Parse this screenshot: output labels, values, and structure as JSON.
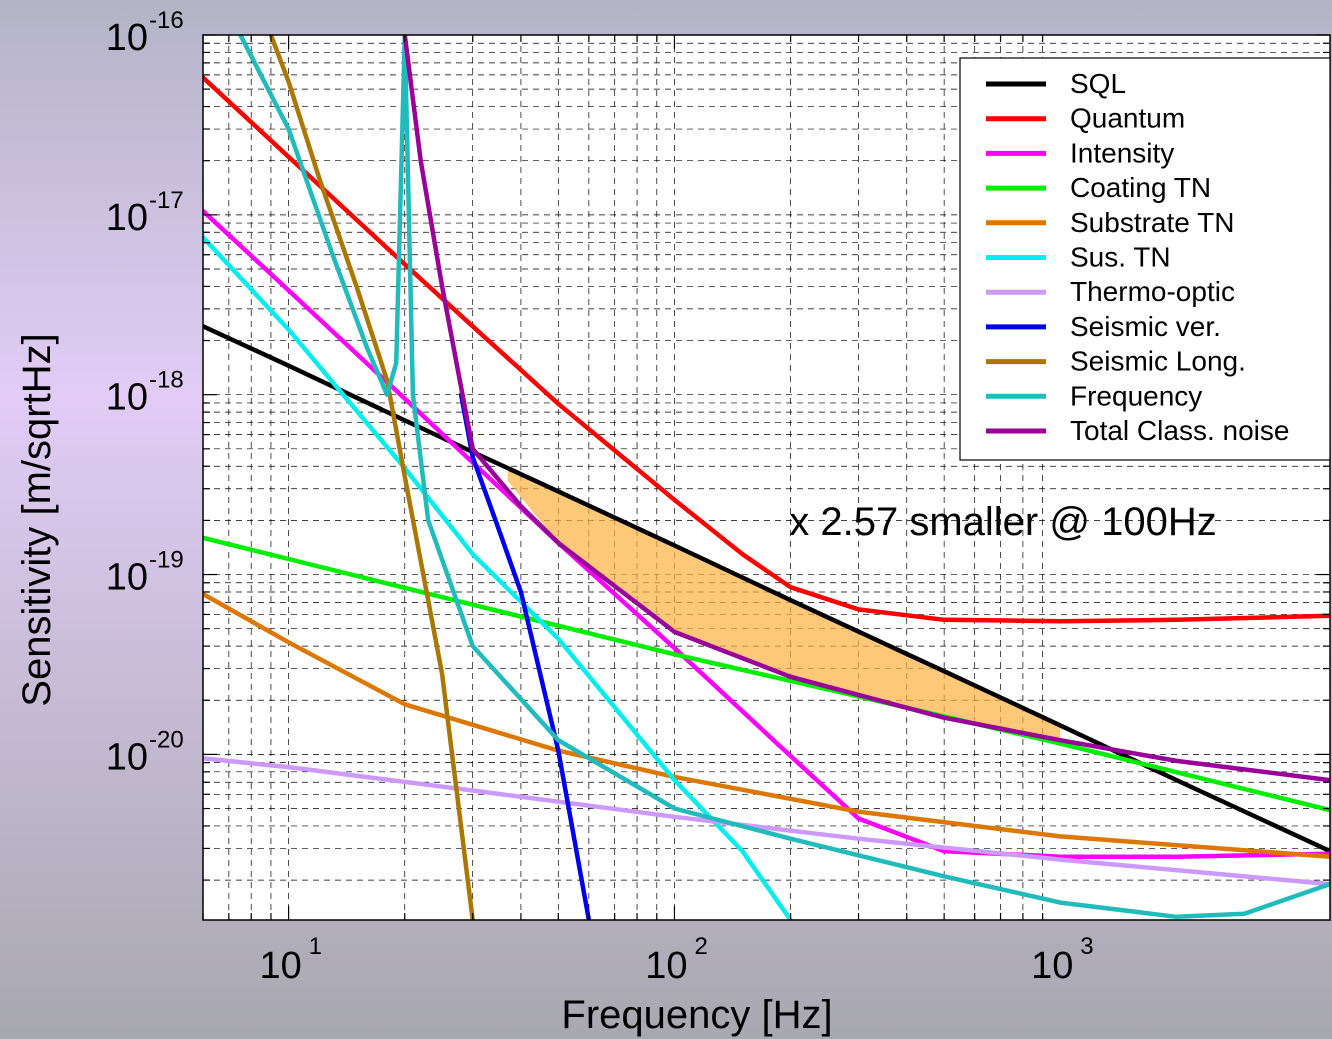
{
  "chart_data": {
    "type": "line",
    "xlabel": "Frequency [Hz]",
    "ylabel": "Sensitivity [m/sqrtHz]",
    "x_scale": "log",
    "y_scale": "log",
    "xlim": [
      6,
      5000
    ],
    "ylim": [
      1.2e-21,
      1e-16
    ],
    "grid": true,
    "legend_position": "top-right",
    "annotation": "x 2.57 smaller @ 100Hz",
    "x_ticks": [
      {
        "base": "10",
        "exp": "1",
        "value": 10
      },
      {
        "base": "10",
        "exp": "2",
        "value": 100
      },
      {
        "base": "10",
        "exp": "3",
        "value": 1000
      }
    ],
    "y_ticks": [
      {
        "base": "10",
        "exp": "-16",
        "value": 1e-16
      },
      {
        "base": "10",
        "exp": "-17",
        "value": 1e-17
      },
      {
        "base": "10",
        "exp": "-18",
        "value": 1e-18
      },
      {
        "base": "10",
        "exp": "-19",
        "value": 1e-19
      },
      {
        "base": "10",
        "exp": "-20",
        "value": 1e-20
      }
    ],
    "series": [
      {
        "name": "SQL",
        "color": "#000000",
        "x": [
          6,
          10,
          20,
          30,
          50,
          100,
          200,
          500,
          1000,
          2000,
          5000
        ],
        "y": [
          2.4e-18,
          1.45e-18,
          7.2e-19,
          4.8e-19,
          2.9e-19,
          1.45e-19,
          7.2e-20,
          2.9e-20,
          1.45e-20,
          7.2e-21,
          2.9e-21
        ]
      },
      {
        "name": "Quantum",
        "color": "#ff0000",
        "x": [
          6,
          10,
          20,
          30,
          50,
          100,
          150,
          200,
          300,
          500,
          1000,
          2000,
          5000
        ],
        "y": [
          5.8e-17,
          2.1e-17,
          5.3e-18,
          2.4e-18,
          8.9e-19,
          2.6e-19,
          1.3e-19,
          8.5e-20,
          6.4e-20,
          5.6e-20,
          5.5e-20,
          5.6e-20,
          5.9e-20
        ]
      },
      {
        "name": "Intensity",
        "color": "#ff00ff",
        "x": [
          6,
          10,
          20,
          30,
          50,
          100,
          200,
          300,
          500,
          1000,
          2000,
          5000
        ],
        "y": [
          1.05e-17,
          3.8e-18,
          9.5e-19,
          4.2e-19,
          1.5e-19,
          3.9e-20,
          9.8e-21,
          4.4e-21,
          2.9e-21,
          2.7e-21,
          2.7e-21,
          2.8e-21
        ]
      },
      {
        "name": "Coating TN",
        "color": "#00ee00",
        "x": [
          6,
          10,
          30,
          100,
          300,
          1000,
          5000
        ],
        "y": [
          1.6e-19,
          1.22e-19,
          6.8e-20,
          3.6e-20,
          2.1e-20,
          1.15e-20,
          4.9e-21
        ]
      },
      {
        "name": "Substrate TN",
        "color": "#dd7700",
        "x": [
          6,
          10,
          20,
          50,
          100,
          300,
          1000,
          5000
        ],
        "y": [
          7.8e-20,
          4.2e-20,
          1.9e-20,
          1.05e-20,
          7.5e-21,
          4.8e-21,
          3.5e-21,
          2.7e-21
        ]
      },
      {
        "name": "Sus. TN",
        "color": "#00eeee",
        "x": [
          6,
          10,
          20,
          30,
          50,
          100,
          150,
          200
        ],
        "y": [
          7.5e-18,
          2.3e-18,
          3.9e-19,
          1.3e-19,
          4.4e-20,
          7.2e-21,
          2.9e-21,
          1.2e-21
        ]
      },
      {
        "name": "Thermo-optic",
        "color": "#cc99ff",
        "x": [
          6,
          10,
          30,
          100,
          300,
          1000,
          5000
        ],
        "y": [
          9.5e-21,
          8.5e-21,
          6.3e-21,
          4.5e-21,
          3.4e-21,
          2.6e-21,
          1.9e-21
        ]
      },
      {
        "name": "Seismic ver.",
        "color": "#0000ee",
        "x": [
          28,
          30,
          35,
          40,
          50,
          60
        ],
        "y": [
          1e-18,
          4.5e-19,
          1.8e-19,
          8e-20,
          1.05e-20,
          1.2e-21
        ]
      },
      {
        "name": "Seismic Long.",
        "color": "#aa7700",
        "x": [
          9,
          10,
          12,
          15,
          18,
          20,
          25,
          30
        ],
        "y": [
          1e-16,
          5.5e-17,
          1.6e-17,
          4e-18,
          1.2e-18,
          3.5e-19,
          2.8e-20,
          1.2e-21
        ]
      },
      {
        "name": "Frequency",
        "color": "#22bbbb",
        "x": [
          7.5,
          10,
          13,
          16,
          18,
          19,
          20,
          21,
          23,
          30,
          50,
          100,
          200,
          500,
          1000,
          2000,
          3000,
          5000
        ],
        "y": [
          1e-16,
          3e-17,
          6e-18,
          1.8e-18,
          1e-18,
          1.5e-18,
          1e-16,
          1e-18,
          2e-19,
          4e-20,
          1.2e-20,
          5e-21,
          3.4e-21,
          2.1e-21,
          1.5e-21,
          1.25e-21,
          1.3e-21,
          1.9e-21
        ]
      },
      {
        "name": "Total Class. noise",
        "color": "#990099",
        "x": [
          20,
          22,
          25,
          30,
          40,
          50,
          100,
          200,
          500,
          1000,
          2000,
          5000
        ],
        "y": [
          1e-16,
          2e-17,
          4e-18,
          5e-19,
          2.4e-19,
          1.5e-19,
          4.8e-20,
          2.7e-20,
          1.6e-20,
          1.2e-20,
          9.2e-21,
          7.2e-21
        ]
      }
    ],
    "shaded_region": {
      "color": "#ffb040",
      "x": [
        37,
        50,
        100,
        200,
        500,
        1000
      ],
      "upper": [
        3.9e-19,
        2.9e-19,
        1.45e-19,
        7.2e-20,
        2.9e-20,
        1.45e-20
      ],
      "lower": [
        3.3e-19,
        1.5e-19,
        4.8e-20,
        2.7e-20,
        1.6e-20,
        1.2e-20
      ]
    }
  }
}
